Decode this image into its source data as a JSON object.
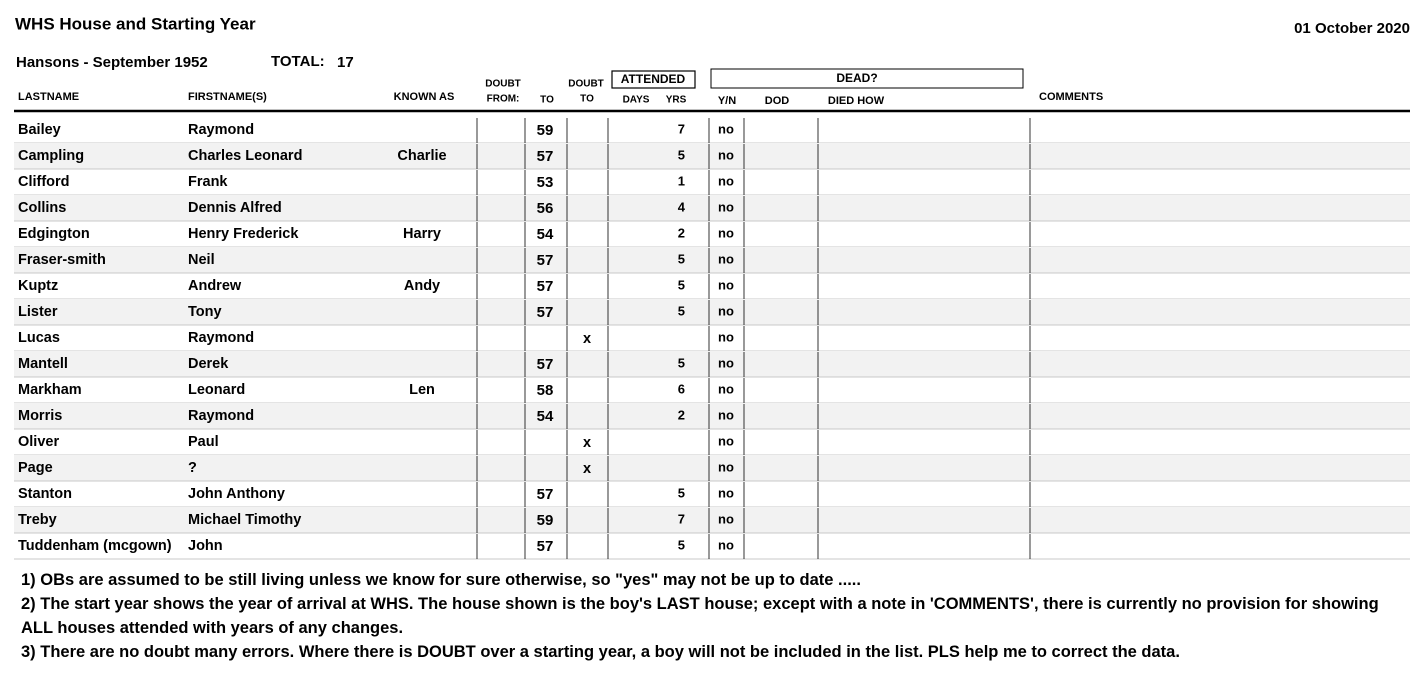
{
  "header": {
    "title": "WHS House and Starting Year",
    "date": "01 October 2020",
    "subtitle": "Hansons - September 1952",
    "total_label": "TOTAL:",
    "total": 17
  },
  "table": {
    "headers": {
      "lastname": "LASTNAME",
      "firstname": "FIRSTNAME(S)",
      "known_as": "KNOWN AS",
      "doubt_from_1": "DOUBT",
      "doubt_from_2": "FROM:",
      "to": "TO",
      "doubt_to_1": "DOUBT",
      "doubt_to_2": "TO",
      "attended": "ATTENDED",
      "days": "DAYS",
      "yrs": "YRS",
      "dead": "DEAD?",
      "yn": "Y/N",
      "dod": "DOD",
      "died_how": "DIED HOW",
      "comments": "COMMENTS"
    },
    "rows": [
      {
        "lastname": "Bailey",
        "firstname": "Raymond",
        "to": 59,
        "yrs": 7,
        "yn": "no"
      },
      {
        "lastname": "Campling",
        "firstname": "Charles Leonard",
        "known_as": "Charlie",
        "to": 57,
        "yrs": 5,
        "yn": "no"
      },
      {
        "lastname": "Clifford",
        "firstname": "Frank",
        "to": 53,
        "yrs": 1,
        "yn": "no"
      },
      {
        "lastname": "Collins",
        "firstname": "Dennis Alfred",
        "to": 56,
        "yrs": 4,
        "yn": "no"
      },
      {
        "lastname": "Edgington",
        "firstname": "Henry Frederick",
        "known_as": "Harry",
        "to": 54,
        "yrs": 2,
        "yn": "no"
      },
      {
        "lastname": "Fraser-smith",
        "firstname": "Neil",
        "to": 57,
        "yrs": 5,
        "yn": "no"
      },
      {
        "lastname": "Kuptz",
        "firstname": "Andrew",
        "known_as": "Andy",
        "to": 57,
        "yrs": 5,
        "yn": "no"
      },
      {
        "lastname": "Lister",
        "firstname": "Tony",
        "to": 57,
        "yrs": 5,
        "yn": "no"
      },
      {
        "lastname": "Lucas",
        "firstname": "Raymond",
        "doubt_to": "x",
        "yn": "no"
      },
      {
        "lastname": "Mantell",
        "firstname": "Derek",
        "to": 57,
        "yrs": 5,
        "yn": "no"
      },
      {
        "lastname": "Markham",
        "firstname": "Leonard",
        "known_as": "Len",
        "to": 58,
        "yrs": 6,
        "yn": "no"
      },
      {
        "lastname": "Morris",
        "firstname": "Raymond",
        "to": 54,
        "yrs": 2,
        "yn": "no"
      },
      {
        "lastname": "Oliver",
        "firstname": "Paul",
        "doubt_to": "x",
        "yn": "no"
      },
      {
        "lastname": "Page",
        "firstname": "?",
        "doubt_to": "x",
        "yn": "no"
      },
      {
        "lastname": "Stanton",
        "firstname": "John Anthony",
        "to": 57,
        "yrs": 5,
        "yn": "no"
      },
      {
        "lastname": "Treby",
        "firstname": "Michael Timothy",
        "to": 59,
        "yrs": 7,
        "yn": "no"
      },
      {
        "lastname": "Tuddenham (mcgown)",
        "firstname": "John",
        "to": 57,
        "yrs": 5,
        "yn": "no"
      }
    ]
  },
  "notes": [
    "1) OBs are assumed to be still living unless we know for sure otherwise, so \"yes\" may not be up to date .....",
    "2) The start year shows the year of arrival at WHS. The house shown is the boy's LAST house; except with a note in 'COMMENTS', there is currently no provision for showing ALL houses attended with years of any changes.",
    "3) There are no doubt many errors. Where there is DOUBT over a starting year, a boy will not be included in the list. PLS help me to correct the data."
  ]
}
